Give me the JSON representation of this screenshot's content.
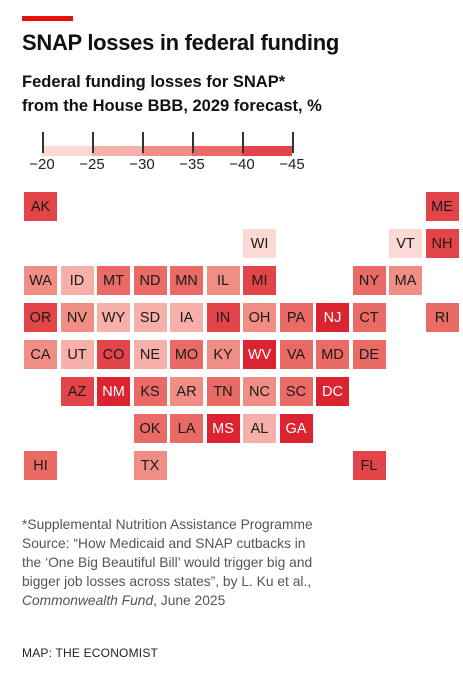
{
  "title": "SNAP losses in federal funding",
  "subtitle_line1": "Federal funding losses for SNAP*",
  "subtitle_line2": "from the House BBB, 2029 forecast, %",
  "legend": {
    "labels": [
      "−20",
      "−25",
      "−30",
      "−35",
      "−40",
      "−45"
    ],
    "colors": [
      "#fbd9d4",
      "#f6b0a9",
      "#f08e86",
      "#ea6a66",
      "#e34449",
      "#dc2330"
    ]
  },
  "scale_colors": [
    "#fbd9d4",
    "#f6b0a9",
    "#f08e86",
    "#ea6a66",
    "#e34449",
    "#dc2330"
  ],
  "states": [
    {
      "abbr": "AK",
      "col": 0,
      "row": 0,
      "level": 4
    },
    {
      "abbr": "ME",
      "col": 11,
      "row": 0,
      "level": 4
    },
    {
      "abbr": "WI",
      "col": 6,
      "row": 1,
      "level": 0
    },
    {
      "abbr": "VT",
      "col": 10,
      "row": 1,
      "level": 0
    },
    {
      "abbr": "NH",
      "col": 11,
      "row": 1,
      "level": 4
    },
    {
      "abbr": "WA",
      "col": 0,
      "row": 2,
      "level": 2
    },
    {
      "abbr": "ID",
      "col": 1,
      "row": 2,
      "level": 1
    },
    {
      "abbr": "MT",
      "col": 2,
      "row": 2,
      "level": 3
    },
    {
      "abbr": "ND",
      "col": 3,
      "row": 2,
      "level": 3
    },
    {
      "abbr": "MN",
      "col": 4,
      "row": 2,
      "level": 3
    },
    {
      "abbr": "IL",
      "col": 5,
      "row": 2,
      "level": 2
    },
    {
      "abbr": "MI",
      "col": 6,
      "row": 2,
      "level": 4
    },
    {
      "abbr": "NY",
      "col": 9,
      "row": 2,
      "level": 3
    },
    {
      "abbr": "MA",
      "col": 10,
      "row": 2,
      "level": 2
    },
    {
      "abbr": "OR",
      "col": 0,
      "row": 3,
      "level": 4
    },
    {
      "abbr": "NV",
      "col": 1,
      "row": 3,
      "level": 2
    },
    {
      "abbr": "WY",
      "col": 2,
      "row": 3,
      "level": 1
    },
    {
      "abbr": "SD",
      "col": 3,
      "row": 3,
      "level": 1
    },
    {
      "abbr": "IA",
      "col": 4,
      "row": 3,
      "level": 1
    },
    {
      "abbr": "IN",
      "col": 5,
      "row": 3,
      "level": 4
    },
    {
      "abbr": "OH",
      "col": 6,
      "row": 3,
      "level": 2
    },
    {
      "abbr": "PA",
      "col": 7,
      "row": 3,
      "level": 3
    },
    {
      "abbr": "NJ",
      "col": 8,
      "row": 3,
      "level": 5
    },
    {
      "abbr": "CT",
      "col": 9,
      "row": 3,
      "level": 3
    },
    {
      "abbr": "RI",
      "col": 11,
      "row": 3,
      "level": 3
    },
    {
      "abbr": "CA",
      "col": 0,
      "row": 4,
      "level": 2
    },
    {
      "abbr": "UT",
      "col": 1,
      "row": 4,
      "level": 1
    },
    {
      "abbr": "CO",
      "col": 2,
      "row": 4,
      "level": 4
    },
    {
      "abbr": "NE",
      "col": 3,
      "row": 4,
      "level": 1
    },
    {
      "abbr": "MO",
      "col": 4,
      "row": 4,
      "level": 3
    },
    {
      "abbr": "KY",
      "col": 5,
      "row": 4,
      "level": 2
    },
    {
      "abbr": "WV",
      "col": 6,
      "row": 4,
      "level": 5
    },
    {
      "abbr": "VA",
      "col": 7,
      "row": 4,
      "level": 3
    },
    {
      "abbr": "MD",
      "col": 8,
      "row": 4,
      "level": 3
    },
    {
      "abbr": "DE",
      "col": 9,
      "row": 4,
      "level": 3
    },
    {
      "abbr": "AZ",
      "col": 1,
      "row": 5,
      "level": 4
    },
    {
      "abbr": "NM",
      "col": 2,
      "row": 5,
      "level": 5
    },
    {
      "abbr": "KS",
      "col": 3,
      "row": 5,
      "level": 3
    },
    {
      "abbr": "AR",
      "col": 4,
      "row": 5,
      "level": 2
    },
    {
      "abbr": "TN",
      "col": 5,
      "row": 5,
      "level": 3
    },
    {
      "abbr": "NC",
      "col": 6,
      "row": 5,
      "level": 2
    },
    {
      "abbr": "SC",
      "col": 7,
      "row": 5,
      "level": 3
    },
    {
      "abbr": "DC",
      "col": 8,
      "row": 5,
      "level": 5
    },
    {
      "abbr": "OK",
      "col": 3,
      "row": 6,
      "level": 3
    },
    {
      "abbr": "LA",
      "col": 4,
      "row": 6,
      "level": 3
    },
    {
      "abbr": "MS",
      "col": 5,
      "row": 6,
      "level": 5
    },
    {
      "abbr": "AL",
      "col": 6,
      "row": 6,
      "level": 1
    },
    {
      "abbr": "GA",
      "col": 7,
      "row": 6,
      "level": 5
    },
    {
      "abbr": "HI",
      "col": 0,
      "row": 7,
      "level": 3
    },
    {
      "abbr": "TX",
      "col": 3,
      "row": 7,
      "level": 2
    },
    {
      "abbr": "FL",
      "col": 9,
      "row": 7,
      "level": 4
    }
  ],
  "notes": {
    "line1": "*Supplemental Nutrition Assistance Programme",
    "line2": "Source: “How Medicaid and SNAP cutbacks in",
    "line3": "the ‘One Big Beautiful Bill’ would trigger big and",
    "line4": "bigger job losses across states”, by L. Ku et al.,",
    "line5_italic": "Commonwealth Fund",
    "line5_rest": ", June 2025"
  },
  "credit": "MAP: THE ECONOMIST"
}
